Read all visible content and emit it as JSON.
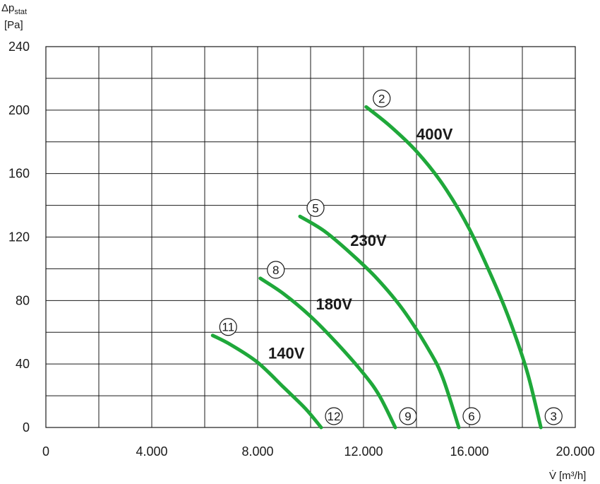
{
  "chart_data": {
    "type": "line",
    "ylabel_symbol": "Δp",
    "ylabel_subscript": "stat",
    "ylabel_unit": "[Pa]",
    "xlabel_symbol": "V̇",
    "xlabel_unit": "[m³/h]",
    "xlim": [
      0,
      20000
    ],
    "ylim": [
      0,
      240
    ],
    "grid": true,
    "x_ticks": [
      {
        "value": 0,
        "label": "0"
      },
      {
        "value": 4000,
        "label": "4.000"
      },
      {
        "value": 8000,
        "label": "8.000"
      },
      {
        "value": 12000,
        "label": "12.000"
      },
      {
        "value": 16000,
        "label": "16.000"
      },
      {
        "value": 20000,
        "label": "20.000"
      }
    ],
    "y_ticks": [
      {
        "value": 0,
        "label": "0"
      },
      {
        "value": 40,
        "label": "40"
      },
      {
        "value": 80,
        "label": "80"
      },
      {
        "value": 120,
        "label": "120"
      },
      {
        "value": 160,
        "label": "160"
      },
      {
        "value": 200,
        "label": "200"
      },
      {
        "value": 240,
        "label": "240"
      }
    ],
    "line_color": "#1fa83a",
    "series": [
      {
        "name": "400V",
        "start_point": "2",
        "end_point": "3",
        "x": [
          12100,
          13000,
          14000,
          15000,
          16000,
          17000,
          17600,
          18200,
          18700
        ],
        "y": [
          202,
          190,
          174,
          153,
          125,
          89,
          64,
          34,
          0
        ],
        "label_at": [
          14000,
          185
        ]
      },
      {
        "name": "230V",
        "start_point": "5",
        "end_point": "6",
        "x": [
          9600,
          10500,
          11500,
          12500,
          13500,
          14500,
          15000,
          15600
        ],
        "y": [
          133,
          124,
          110,
          94,
          74,
          48,
          31,
          0
        ],
        "label_at": [
          11500,
          118
        ]
      },
      {
        "name": "180V",
        "start_point": "8",
        "end_point": "9",
        "x": [
          8100,
          9000,
          10000,
          11000,
          12000,
          12600,
          13200
        ],
        "y": [
          94,
          84,
          70,
          53,
          34,
          20,
          0
        ],
        "label_at": [
          10200,
          78
        ]
      },
      {
        "name": "140V",
        "start_point": "11",
        "end_point": "12",
        "x": [
          6300,
          7000,
          8000,
          9000,
          9800,
          10400
        ],
        "y": [
          58,
          52,
          41,
          25,
          12,
          0
        ],
        "label_at": [
          8400,
          47
        ]
      }
    ]
  }
}
